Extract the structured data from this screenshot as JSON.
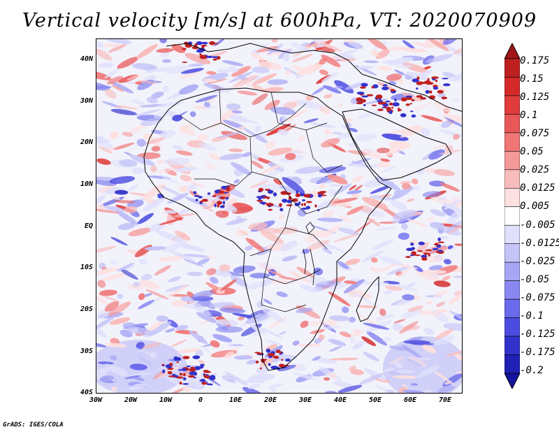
{
  "title": "Vertical velocity [m/s] at 600hPa, VT: 2020070909",
  "credit": "GrADS: IGES/COLA",
  "map": {
    "lat_labels": [
      "40N",
      "30N",
      "20N",
      "10N",
      "EQ",
      "10S",
      "20S",
      "30S",
      "40S"
    ],
    "lon_labels": [
      "30W",
      "20W",
      "10W",
      "0",
      "10E",
      "20E",
      "30E",
      "40E",
      "50E",
      "60E",
      "70E"
    ],
    "lat_range": [
      -40,
      45
    ],
    "lon_range": [
      -30,
      75
    ],
    "colors": {
      "positive": "#e04848",
      "negative": "#5a5ae6",
      "coast": "#000000"
    }
  },
  "colorbar": {
    "labels": [
      "0.175",
      "0.15",
      "0.125",
      "0.1",
      "0.075",
      "0.05",
      "0.025",
      "0.0125",
      "0.005",
      "-0.005",
      "-0.0125",
      "-0.025",
      "-0.05",
      "-0.075",
      "-0.1",
      "-0.125",
      "-0.175",
      "-0.2"
    ],
    "colors": [
      "#a01616",
      "#be2020",
      "#d42a2a",
      "#e03c3c",
      "#e85858",
      "#f07676",
      "#f59898",
      "#f9bcbc",
      "#fde0e0",
      "#ffffff",
      "#e0e0fc",
      "#c4c4f8",
      "#a6a6f4",
      "#8888f0",
      "#6a6aec",
      "#4c4ce0",
      "#3232cc",
      "#2020b4",
      "#1414a0"
    ]
  }
}
